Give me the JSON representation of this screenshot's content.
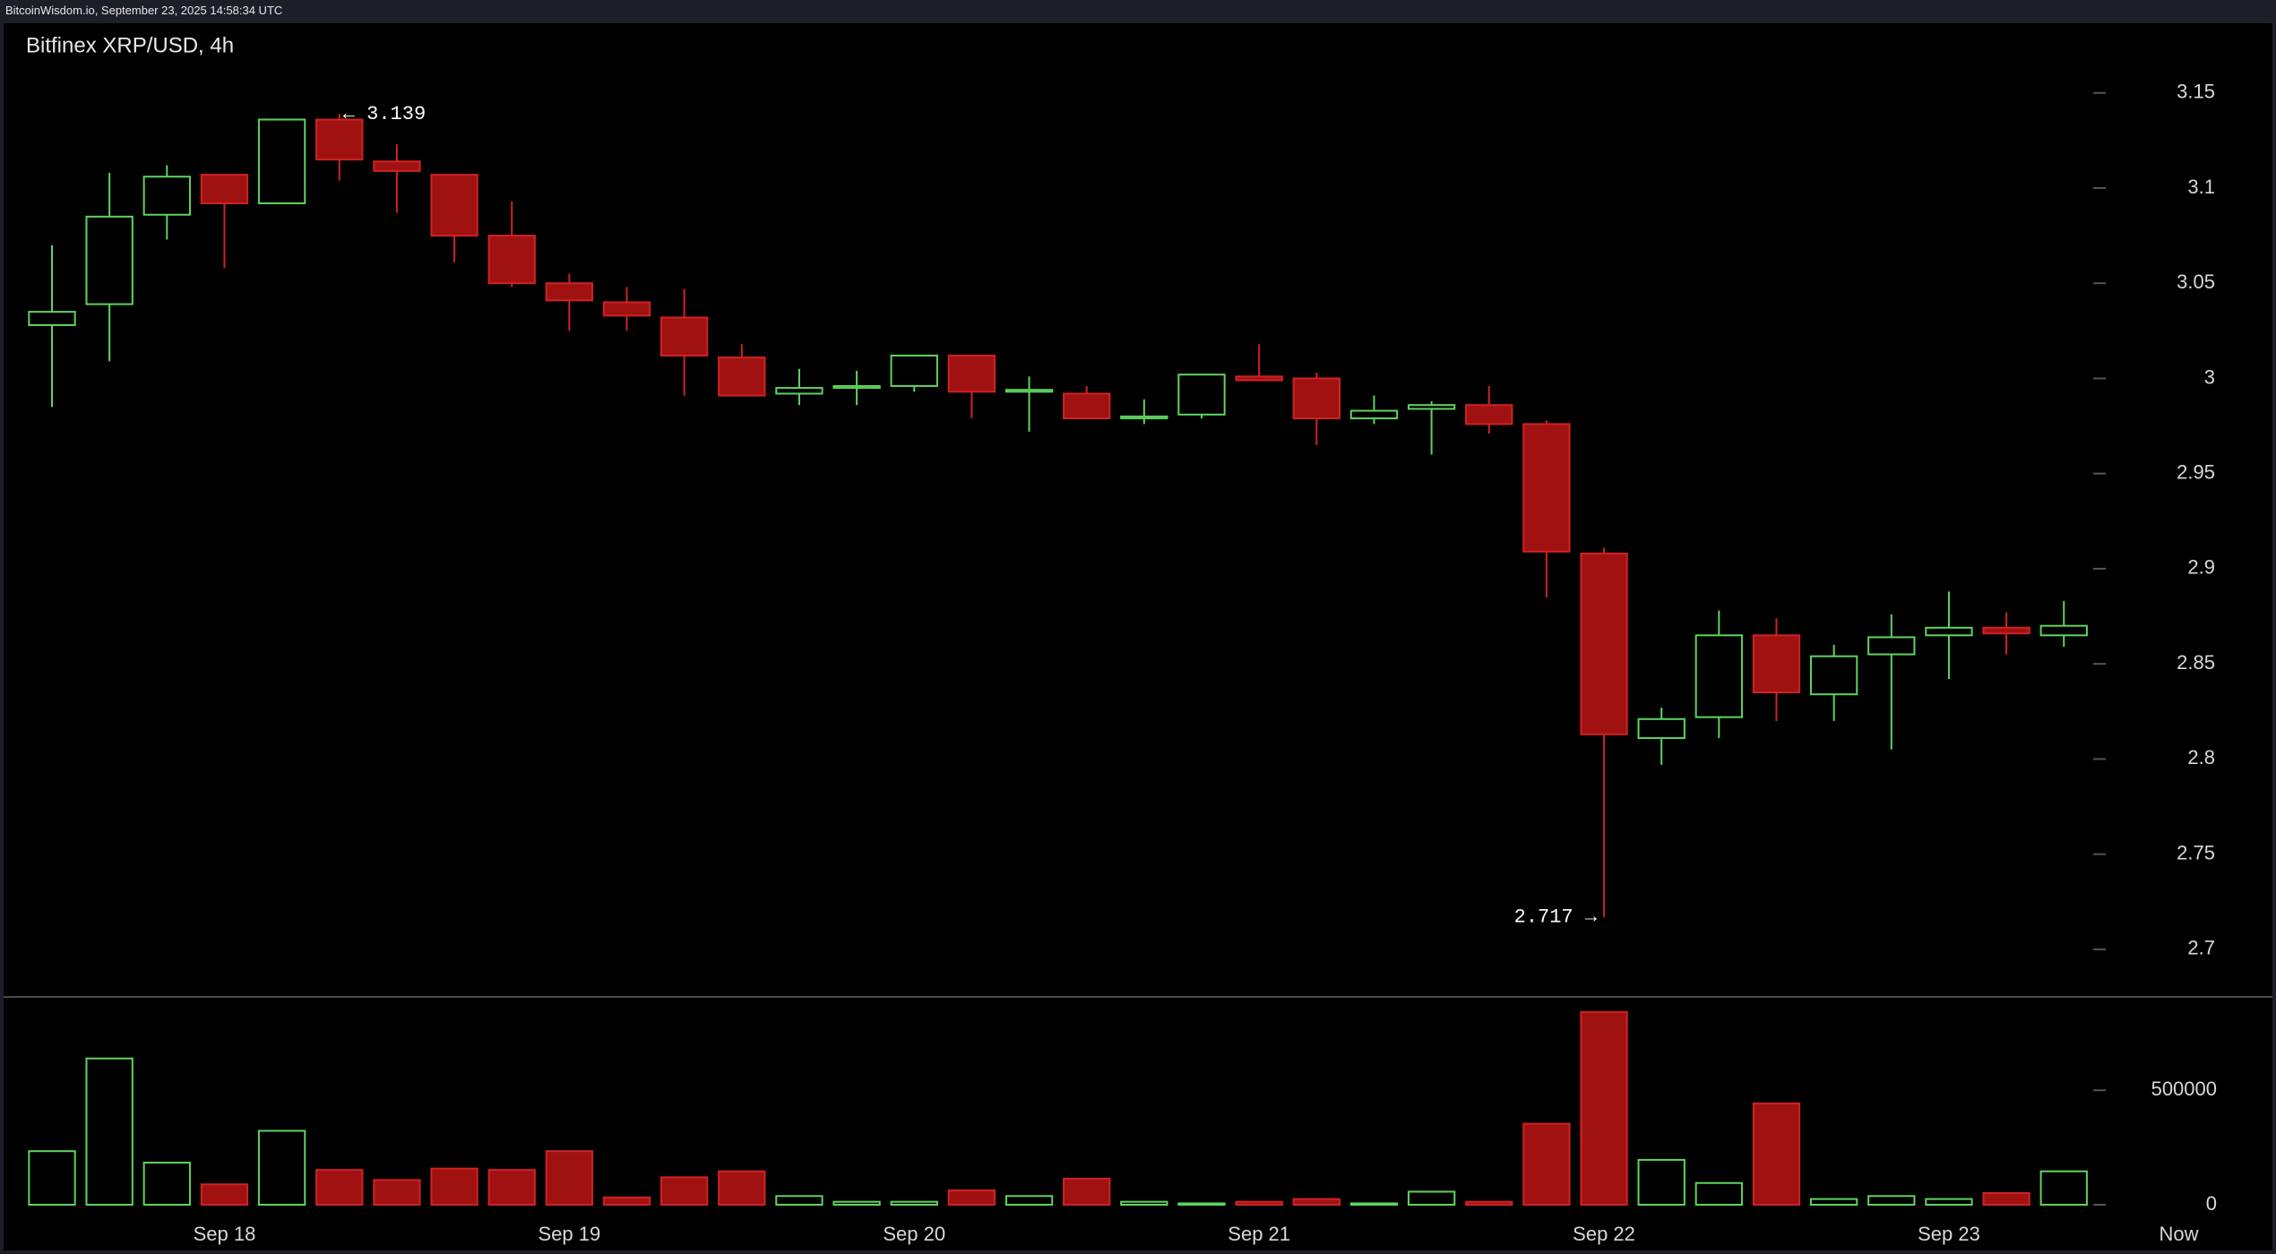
{
  "header": "BitcoinWisdom.io, September 23, 2025 14:58:34 UTC",
  "chart_data": {
    "type": "candlestick",
    "title": "Bitfinex XRP/USD, 4h",
    "categories": [
      null,
      null,
      null,
      "Sep 18",
      null,
      null,
      null,
      null,
      null,
      "Sep 19",
      null,
      null,
      null,
      null,
      null,
      "Sep 20",
      null,
      null,
      null,
      null,
      null,
      "Sep 21",
      null,
      null,
      null,
      null,
      null,
      "Sep 22",
      null,
      null,
      null,
      null,
      null,
      "Sep 23",
      null,
      null
    ],
    "x_end_label": "Now",
    "open": [
      3.028,
      3.039,
      3.086,
      3.107,
      3.092,
      3.136,
      3.114,
      3.107,
      3.075,
      3.05,
      3.04,
      3.032,
      3.011,
      2.992,
      2.995,
      2.996,
      3.012,
      2.993,
      2.992,
      2.979,
      2.981,
      3.001,
      3.0,
      2.979,
      2.984,
      2.986,
      2.976,
      2.908,
      2.811,
      2.822,
      2.865,
      2.834,
      2.855,
      2.865,
      2.869,
      2.865
    ],
    "high": [
      3.07,
      3.108,
      3.112,
      3.107,
      3.136,
      3.139,
      3.123,
      3.107,
      3.093,
      3.055,
      3.048,
      3.047,
      3.018,
      3.005,
      3.004,
      3.012,
      3.012,
      3.001,
      2.996,
      2.989,
      3.002,
      3.018,
      3.003,
      2.991,
      2.988,
      2.996,
      2.978,
      2.911,
      2.827,
      2.878,
      2.874,
      2.86,
      2.876,
      2.888,
      2.877,
      2.883
    ],
    "low": [
      2.985,
      3.009,
      3.073,
      3.058,
      3.092,
      3.104,
      3.087,
      3.061,
      3.048,
      3.025,
      3.025,
      2.991,
      2.991,
      2.986,
      2.986,
      2.993,
      2.979,
      2.972,
      2.979,
      2.976,
      2.979,
      2.999,
      2.965,
      2.976,
      2.96,
      2.971,
      2.885,
      2.717,
      2.797,
      2.811,
      2.82,
      2.82,
      2.805,
      2.842,
      2.855,
      2.859
    ],
    "close": [
      3.035,
      3.085,
      3.106,
      3.092,
      3.136,
      3.115,
      3.109,
      3.075,
      3.05,
      3.041,
      3.033,
      3.012,
      2.991,
      2.995,
      2.996,
      3.012,
      2.993,
      2.994,
      2.979,
      2.98,
      3.002,
      2.999,
      2.979,
      2.983,
      2.986,
      2.976,
      2.909,
      2.813,
      2.821,
      2.865,
      2.835,
      2.854,
      2.864,
      2.869,
      2.866,
      2.87
    ],
    "up_color": "#5fd35f",
    "down_color": "#a01212",
    "down_edge": "#d02222",
    "ylim": [
      2.675,
      3.18
    ],
    "yticks": [
      2.7,
      2.75,
      2.8,
      2.85,
      2.9,
      2.95,
      3,
      3.05,
      3.1,
      3.15
    ],
    "annotations": [
      {
        "value": 3.139,
        "label": "← 3.139"
      },
      {
        "value": 2.717,
        "label": "2.717 →"
      }
    ],
    "volume": {
      "values": [
        234000,
        639000,
        184000,
        89000,
        323000,
        152000,
        108000,
        158000,
        152000,
        234000,
        32000,
        120000,
        146000,
        38000,
        13000,
        13000,
        63000,
        38000,
        114000,
        13000,
        6000,
        13000,
        25000,
        6000,
        57000,
        13000,
        354000,
        842000,
        196000,
        95000,
        443000,
        25000,
        38000,
        25000,
        51000,
        146000
      ],
      "ylim": [
        0,
        900000
      ],
      "yticks": [
        0,
        500000
      ]
    }
  }
}
